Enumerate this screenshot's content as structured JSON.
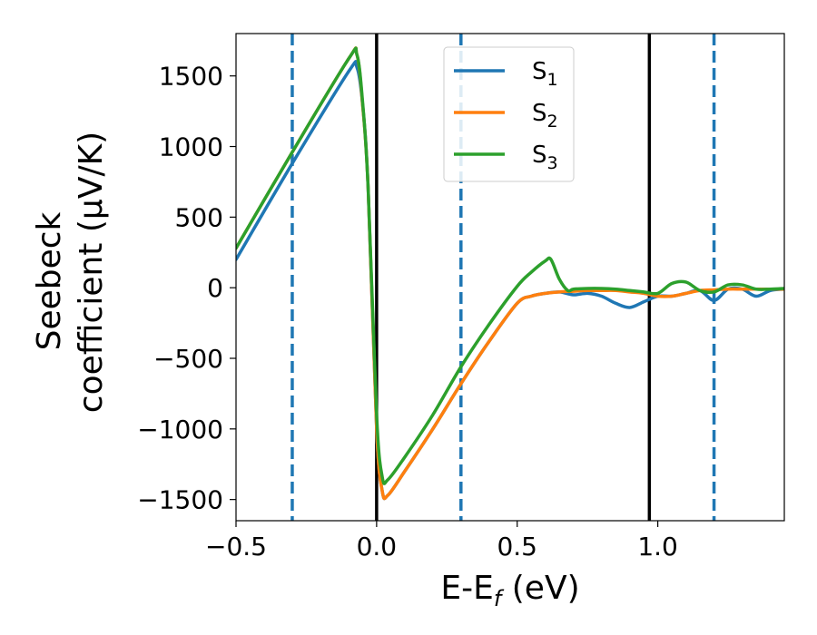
{
  "chart_data": {
    "type": "line",
    "xlabel": "E-E",
    "xlabel_sub": "f",
    "xlabel_unit": " (eV)",
    "ylabel_line1": "Seebeck",
    "ylabel_line2": "coefficient  (μV/K)",
    "xlim": [
      -0.5,
      1.45
    ],
    "ylim": [
      -1650,
      1800
    ],
    "x_ticks": [
      -0.5,
      0.0,
      0.5,
      1.0
    ],
    "x_tick_labels": [
      "−0.5",
      "0.0",
      "0.5",
      "1.0"
    ],
    "y_ticks": [
      -1500,
      -1000,
      -500,
      0,
      500,
      1000,
      1500
    ],
    "y_tick_labels": [
      "−1500",
      "−1000",
      "−500",
      "0",
      "500",
      "1000",
      "1500"
    ],
    "grid": false,
    "legend_position": "top-center",
    "vlines": [
      {
        "x": -0.3,
        "style": "dashed",
        "color": "#1f77b4"
      },
      {
        "x": 0.0,
        "style": "solid",
        "color": "#000000"
      },
      {
        "x": 0.3,
        "style": "dashed",
        "color": "#1f77b4"
      },
      {
        "x": 0.97,
        "style": "solid",
        "color": "#000000"
      },
      {
        "x": 1.2,
        "style": "dashed",
        "color": "#1f77b4"
      }
    ],
    "series": [
      {
        "name": "S",
        "sub": "1",
        "color": "#1f77b4",
        "x": [
          -0.5,
          -0.3,
          -0.1,
          -0.07,
          -0.05,
          -0.03,
          0.0,
          0.02,
          0.04,
          0.1,
          0.2,
          0.3,
          0.4,
          0.5,
          0.55,
          0.6,
          0.65,
          0.7,
          0.75,
          0.8,
          0.85,
          0.9,
          0.95,
          1.0,
          1.05,
          1.1,
          1.15,
          1.2,
          1.25,
          1.3,
          1.35,
          1.4,
          1.45
        ],
        "y": [
          200,
          880,
          1530,
          1560,
          1300,
          700,
          -1000,
          -1440,
          -1470,
          -1300,
          -1000,
          -680,
          -380,
          -110,
          -60,
          -40,
          -30,
          -50,
          -40,
          -60,
          -110,
          -140,
          -100,
          -60,
          -60,
          -40,
          -20,
          -90,
          -10,
          -10,
          -60,
          -20,
          -10
        ]
      },
      {
        "name": "S",
        "sub": "2",
        "color": "#ff7f0e",
        "x": [
          -0.5,
          -0.3,
          -0.1,
          -0.07,
          -0.05,
          -0.03,
          0.0,
          0.02,
          0.04,
          0.1,
          0.2,
          0.3,
          0.4,
          0.5,
          0.55,
          0.6,
          0.65,
          0.7,
          0.75,
          0.8,
          0.85,
          0.9,
          0.95,
          1.0,
          1.05,
          1.1,
          1.15,
          1.2,
          1.25,
          1.3,
          1.35,
          1.4,
          1.45
        ],
        "y": [
          280,
          960,
          1620,
          1650,
          1300,
          700,
          -1000,
          -1440,
          -1470,
          -1300,
          -1000,
          -680,
          -380,
          -110,
          -60,
          -40,
          -30,
          -25,
          -20,
          -20,
          -20,
          -30,
          -40,
          -60,
          -60,
          -40,
          -20,
          -15,
          -10,
          -10,
          -10,
          -10,
          -10
        ]
      },
      {
        "name": "S",
        "sub": "3",
        "color": "#2ca02c",
        "x": [
          -0.5,
          -0.3,
          -0.1,
          -0.07,
          -0.05,
          -0.03,
          0.0,
          0.02,
          0.04,
          0.1,
          0.2,
          0.3,
          0.4,
          0.5,
          0.55,
          0.6,
          0.62,
          0.65,
          0.68,
          0.7,
          0.75,
          0.8,
          0.85,
          0.9,
          0.95,
          1.0,
          1.05,
          1.1,
          1.15,
          1.2,
          1.25,
          1.3,
          1.35,
          1.4,
          1.45
        ],
        "y": [
          280,
          960,
          1620,
          1650,
          1320,
          700,
          -900,
          -1340,
          -1360,
          -1200,
          -900,
          -560,
          -260,
          10,
          110,
          190,
          200,
          60,
          -20,
          -10,
          -5,
          -5,
          -10,
          -20,
          -30,
          -40,
          30,
          40,
          -20,
          -30,
          20,
          20,
          -10,
          -10,
          -5
        ]
      }
    ]
  }
}
